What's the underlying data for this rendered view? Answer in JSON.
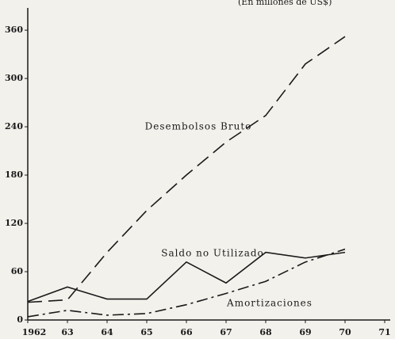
{
  "chart_data": {
    "type": "line",
    "subtitle": "(En millones de US$)",
    "x": [
      1962,
      1963,
      1964,
      1965,
      1966,
      1967,
      1968,
      1969,
      1970
    ],
    "xlim": [
      1962,
      1971
    ],
    "xticks": [
      {
        "value": 1962,
        "label": "1962"
      },
      {
        "value": 1963,
        "label": "63"
      },
      {
        "value": 1964,
        "label": "64"
      },
      {
        "value": 1965,
        "label": "65"
      },
      {
        "value": 1966,
        "label": "66"
      },
      {
        "value": 1967,
        "label": "67"
      },
      {
        "value": 1968,
        "label": "68"
      },
      {
        "value": 1969,
        "label": "69"
      },
      {
        "value": 1970,
        "label": "70"
      },
      {
        "value": 1971,
        "label": "71"
      }
    ],
    "ylim": [
      0,
      365
    ],
    "yticks": [
      0,
      60,
      120,
      180,
      240,
      300,
      360
    ],
    "grid": false,
    "series": [
      {
        "name": "Desembolsos Bruto",
        "color": "#1a1a1a",
        "line_style": "dashed",
        "values": [
          22,
          25,
          84,
          136,
          180,
          221,
          254,
          318,
          352
        ]
      },
      {
        "name": "Saldo no Utilizado",
        "color": "#1a1a1a",
        "line_style": "solid",
        "values": [
          23,
          41,
          26,
          26,
          72,
          46,
          84,
          77,
          84
        ]
      },
      {
        "name": "Amortizaciones",
        "color": "#1a1a1a",
        "line_style": "dashdot",
        "values": [
          4,
          12,
          6,
          8,
          19,
          33,
          48,
          72,
          88
        ]
      }
    ]
  }
}
